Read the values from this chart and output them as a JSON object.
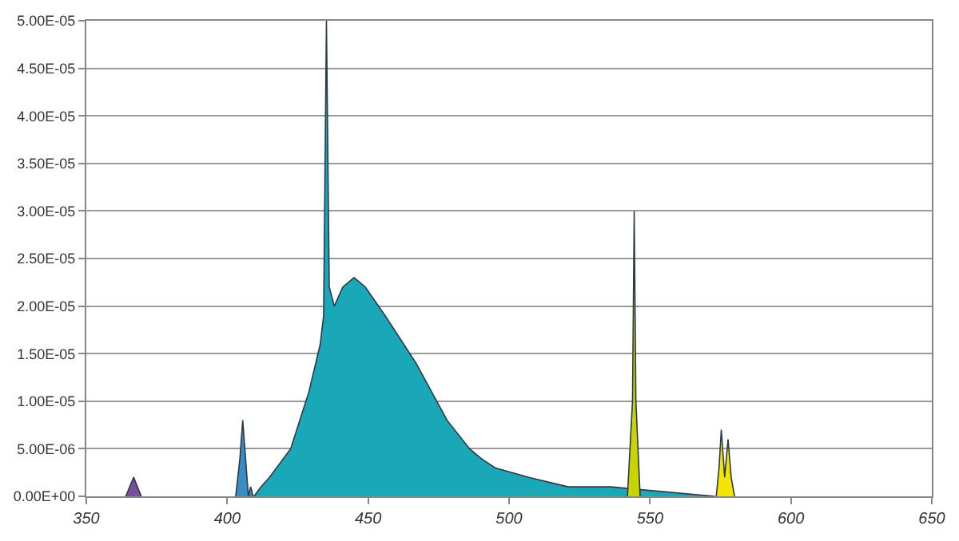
{
  "chart_data": {
    "type": "area",
    "xlim": [
      350,
      650
    ],
    "xticks": [
      350,
      400,
      450,
      500,
      550,
      600,
      650
    ],
    "ylim": [
      0,
      5e-05
    ],
    "yticks": [
      {
        "value": 0,
        "label": "0.00E+00"
      },
      {
        "value": 5e-06,
        "label": "5.00E-06"
      },
      {
        "value": 1e-05,
        "label": "1.00E-05"
      },
      {
        "value": 1.5e-05,
        "label": "1.50E-05"
      },
      {
        "value": 2e-05,
        "label": "2.00E-05"
      },
      {
        "value": 2.5e-05,
        "label": "2.50E-05"
      },
      {
        "value": 3e-05,
        "label": "3.00E-05"
      },
      {
        "value": 3.5e-05,
        "label": "3.50E-05"
      },
      {
        "value": 4e-05,
        "label": "4.00E-05"
      },
      {
        "value": 4.5e-05,
        "label": "4.50E-05"
      },
      {
        "value": 5e-05,
        "label": "5.00E-05"
      }
    ],
    "grid": "y",
    "series": [
      {
        "color": "#7b4f9e",
        "x": [
          364,
          366.8,
          369.5
        ],
        "values": [
          0,
          2e-06,
          0
        ]
      },
      {
        "color": "#3a8cc4",
        "x": [
          403,
          404.5,
          405.5,
          406.5,
          407.5,
          408.3,
          409.2
        ],
        "values": [
          0,
          4e-06,
          8e-06,
          4e-06,
          0,
          1e-06,
          0
        ]
      },
      {
        "color": "#1aa7b8",
        "x": [
          409.5,
          412,
          415,
          422.5,
          429,
          433,
          434.2,
          435.2,
          436.2,
          438,
          441,
          445,
          449,
          456,
          467,
          478,
          486,
          490,
          495,
          507,
          521,
          536,
          573
        ],
        "values": [
          0,
          1e-06,
          2e-06,
          5e-06,
          1.1e-05,
          1.6e-05,
          1.9e-05,
          5e-05,
          2.2e-05,
          2e-05,
          2.2e-05,
          2.3e-05,
          2.2e-05,
          1.9e-05,
          1.4e-05,
          8e-06,
          5e-06,
          4e-06,
          3e-06,
          2e-06,
          1e-06,
          1e-06,
          0
        ]
      },
      {
        "color": "#c8d400",
        "x": [
          542,
          543.8,
          544.4,
          545,
          546.5
        ],
        "values": [
          0,
          1e-05,
          3e-05,
          1e-05,
          0
        ]
      },
      {
        "color": "#f5e400",
        "x": [
          573.5,
          574.5,
          575.3,
          576.5,
          577.7,
          578.8,
          580
        ],
        "values": [
          0,
          3e-06,
          7e-06,
          2e-06,
          6e-06,
          2e-06,
          0
        ]
      }
    ]
  }
}
